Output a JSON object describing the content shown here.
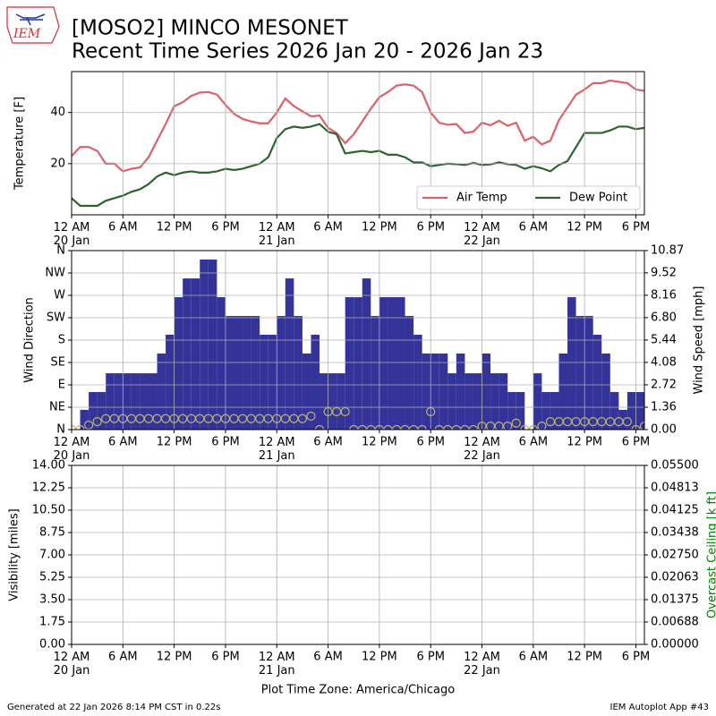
{
  "title_lines": [
    "[MOSO2] MINCO MESONET",
    "Recent Time Series 2026 Jan 20 - 2026 Jan 23"
  ],
  "footer_left": "Generated at 22 Jan 2026 8:14 PM CST in 0.22s",
  "footer_right": "IEM Autoplot App #43",
  "chart_data": [
    {
      "type": "line",
      "ylabel": "Temperature [F]",
      "legend": "lower right",
      "grid": true,
      "x": [
        "2026-01-20 00:00",
        "2026-01-20 01:00",
        "2026-01-20 02:00",
        "2026-01-20 03:00",
        "2026-01-20 04:00",
        "2026-01-20 05:00",
        "2026-01-20 06:00",
        "2026-01-20 07:00",
        "2026-01-20 08:00",
        "2026-01-20 09:00",
        "2026-01-20 10:00",
        "2026-01-20 11:00",
        "2026-01-20 12:00",
        "2026-01-20 13:00",
        "2026-01-20 14:00",
        "2026-01-20 15:00",
        "2026-01-20 16:00",
        "2026-01-20 17:00",
        "2026-01-20 18:00",
        "2026-01-20 19:00",
        "2026-01-20 20:00",
        "2026-01-20 21:00",
        "2026-01-20 22:00",
        "2026-01-20 23:00",
        "2026-01-21 00:00",
        "2026-01-21 01:00",
        "2026-01-21 02:00",
        "2026-01-21 03:00",
        "2026-01-21 04:00",
        "2026-01-21 05:00",
        "2026-01-21 06:00",
        "2026-01-21 07:00",
        "2026-01-21 08:00",
        "2026-01-21 09:00",
        "2026-01-21 10:00",
        "2026-01-21 11:00",
        "2026-01-21 12:00",
        "2026-01-21 13:00",
        "2026-01-21 14:00",
        "2026-01-21 15:00",
        "2026-01-21 16:00",
        "2026-01-21 17:00",
        "2026-01-21 18:00",
        "2026-01-21 19:00",
        "2026-01-21 20:00",
        "2026-01-21 21:00",
        "2026-01-21 22:00",
        "2026-01-21 23:00",
        "2026-01-22 00:00",
        "2026-01-22 01:00",
        "2026-01-22 02:00",
        "2026-01-22 03:00",
        "2026-01-22 04:00",
        "2026-01-22 05:00",
        "2026-01-22 06:00",
        "2026-01-22 07:00",
        "2026-01-22 08:00",
        "2026-01-22 09:00",
        "2026-01-22 10:00",
        "2026-01-22 11:00",
        "2026-01-22 12:00",
        "2026-01-22 13:00",
        "2026-01-22 14:00",
        "2026-01-22 15:00",
        "2026-01-22 16:00",
        "2026-01-22 17:00",
        "2026-01-22 18:00",
        "2026-01-22 19:00"
      ],
      "xlim": [
        "2026-01-20 00:00",
        "2026-01-22 19:00"
      ],
      "xticks": [
        {
          "value": "2026-01-20 00:00",
          "label": "12 AM\n20 Jan"
        },
        {
          "value": "2026-01-20 06:00",
          "label": "6 AM"
        },
        {
          "value": "2026-01-20 12:00",
          "label": "12 PM"
        },
        {
          "value": "2026-01-20 18:00",
          "label": "6 PM"
        },
        {
          "value": "2026-01-21 00:00",
          "label": "12 AM\n21 Jan"
        },
        {
          "value": "2026-01-21 06:00",
          "label": "6 AM"
        },
        {
          "value": "2026-01-21 12:00",
          "label": "12 PM"
        },
        {
          "value": "2026-01-21 18:00",
          "label": "6 PM"
        },
        {
          "value": "2026-01-22 00:00",
          "label": "12 AM\n22 Jan"
        },
        {
          "value": "2026-01-22 06:00",
          "label": "6 AM"
        },
        {
          "value": "2026-01-22 12:00",
          "label": "12 PM"
        },
        {
          "value": "2026-01-22 18:00",
          "label": "6 PM"
        }
      ],
      "ylim": [
        0,
        56
      ],
      "yticks": [
        20,
        40
      ],
      "series": [
        {
          "name": "Air Temp",
          "color": "#d9626b",
          "type": "line",
          "values": [
            23,
            26.5,
            26.5,
            25,
            20,
            20,
            17,
            18,
            18.5,
            22.5,
            29,
            35.5,
            42.5,
            44,
            46.5,
            47.8,
            48,
            47,
            43,
            39.5,
            37.5,
            36.5,
            35.8,
            35.8,
            40,
            45.5,
            42.5,
            40.5,
            38.5,
            38.8,
            34,
            32,
            28,
            31.5,
            36.5,
            41.5,
            46,
            48,
            50.5,
            51,
            50.5,
            48,
            40,
            36,
            35.2,
            35.5,
            32,
            32.5,
            36,
            35,
            36.8,
            34.8,
            36,
            29,
            30.5,
            27.5,
            29,
            37,
            42,
            47,
            49,
            51.5,
            51.5,
            52.5,
            52,
            51.5,
            49,
            48.5
          ]
        },
        {
          "name": "Dew Point",
          "color": "#2e6330",
          "type": "line",
          "values": [
            6.5,
            3.5,
            3.5,
            3.5,
            5.5,
            6.5,
            7.5,
            9,
            10,
            12,
            15,
            16.5,
            15.5,
            16.5,
            17,
            16.5,
            16.5,
            17,
            18,
            17.5,
            18,
            19,
            20,
            22.5,
            30,
            33.5,
            34.5,
            34,
            34.5,
            35.5,
            32.5,
            31.5,
            24,
            24.5,
            25,
            24.5,
            25,
            23.5,
            23.5,
            22.5,
            20.5,
            20.5,
            19,
            19.5,
            20,
            19.8,
            19.5,
            20.3,
            19.5,
            19.7,
            20.5,
            19.8,
            19.5,
            18,
            19,
            18.2,
            17,
            19.5,
            21,
            26.5,
            32,
            32,
            32,
            33,
            34.5,
            34.5,
            33.5,
            34
          ]
        }
      ]
    },
    {
      "type": "combo",
      "ylabel": "Wind Direction",
      "y2label": "Wind Speed [mph]",
      "grid": true,
      "x": [
        "2026-01-20 00:00",
        "2026-01-20 01:00",
        "2026-01-20 02:00",
        "2026-01-20 03:00",
        "2026-01-20 04:00",
        "2026-01-20 05:00",
        "2026-01-20 06:00",
        "2026-01-20 07:00",
        "2026-01-20 08:00",
        "2026-01-20 09:00",
        "2026-01-20 10:00",
        "2026-01-20 11:00",
        "2026-01-20 12:00",
        "2026-01-20 13:00",
        "2026-01-20 14:00",
        "2026-01-20 15:00",
        "2026-01-20 16:00",
        "2026-01-20 17:00",
        "2026-01-20 18:00",
        "2026-01-20 19:00",
        "2026-01-20 20:00",
        "2026-01-20 21:00",
        "2026-01-20 22:00",
        "2026-01-20 23:00",
        "2026-01-21 00:00",
        "2026-01-21 01:00",
        "2026-01-21 02:00",
        "2026-01-21 03:00",
        "2026-01-21 04:00",
        "2026-01-21 05:00",
        "2026-01-21 06:00",
        "2026-01-21 07:00",
        "2026-01-21 08:00",
        "2026-01-21 09:00",
        "2026-01-21 10:00",
        "2026-01-21 11:00",
        "2026-01-21 12:00",
        "2026-01-21 13:00",
        "2026-01-21 14:00",
        "2026-01-21 15:00",
        "2026-01-21 16:00",
        "2026-01-21 17:00",
        "2026-01-21 18:00",
        "2026-01-21 19:00",
        "2026-01-21 20:00",
        "2026-01-21 21:00",
        "2026-01-21 22:00",
        "2026-01-21 23:00",
        "2026-01-22 00:00",
        "2026-01-22 01:00",
        "2026-01-22 02:00",
        "2026-01-22 03:00",
        "2026-01-22 04:00",
        "2026-01-22 05:00",
        "2026-01-22 06:00",
        "2026-01-22 07:00",
        "2026-01-22 08:00",
        "2026-01-22 09:00",
        "2026-01-22 10:00",
        "2026-01-22 11:00",
        "2026-01-22 12:00",
        "2026-01-22 13:00",
        "2026-01-22 14:00",
        "2026-01-22 15:00",
        "2026-01-22 16:00",
        "2026-01-22 17:00",
        "2026-01-22 18:00",
        "2026-01-22 19:00"
      ],
      "xlim": [
        "2026-01-20 00:00",
        "2026-01-22 19:00"
      ],
      "xticks": [
        {
          "value": "2026-01-20 00:00",
          "label": "12 AM\n20 Jan"
        },
        {
          "value": "2026-01-20 06:00",
          "label": "6 AM"
        },
        {
          "value": "2026-01-20 12:00",
          "label": "12 PM"
        },
        {
          "value": "2026-01-20 18:00",
          "label": "6 PM"
        },
        {
          "value": "2026-01-21 00:00",
          "label": "12 AM\n21 Jan"
        },
        {
          "value": "2026-01-21 06:00",
          "label": "6 AM"
        },
        {
          "value": "2026-01-21 12:00",
          "label": "12 PM"
        },
        {
          "value": "2026-01-21 18:00",
          "label": "6 PM"
        },
        {
          "value": "2026-01-22 00:00",
          "label": "12 AM\n22 Jan"
        },
        {
          "value": "2026-01-22 06:00",
          "label": "6 AM"
        },
        {
          "value": "2026-01-22 12:00",
          "label": "12 PM"
        },
        {
          "value": "2026-01-22 18:00",
          "label": "6 PM"
        }
      ],
      "ylim": [
        0,
        360
      ],
      "yticks": [
        {
          "value": 0,
          "label": "N"
        },
        {
          "value": 45,
          "label": "NE"
        },
        {
          "value": 90,
          "label": "E"
        },
        {
          "value": 135,
          "label": "SE"
        },
        {
          "value": 180,
          "label": "S"
        },
        {
          "value": 225,
          "label": "SW"
        },
        {
          "value": 270,
          "label": "W"
        },
        {
          "value": 315,
          "label": "NW"
        },
        {
          "value": 360,
          "label": "N"
        }
      ],
      "y2lim": [
        0,
        10.87
      ],
      "y2ticks": [
        {
          "value": 0,
          "label": "0.00"
        },
        1.36,
        2.72,
        4.08,
        5.44,
        {
          "value": 6.8,
          "label": "6.80"
        },
        8.16,
        9.52,
        10.87
      ],
      "series": [
        {
          "type": "bar",
          "axis": "y2",
          "color": "#333399",
          "values": [
            0,
            1.2,
            2.28,
            2.28,
            3.42,
            3.42,
            3.42,
            3.42,
            3.42,
            3.42,
            4.62,
            5.76,
            8.04,
            9.18,
            9.18,
            10.33,
            10.33,
            8.04,
            6.9,
            6.9,
            6.9,
            6.9,
            5.76,
            5.76,
            6.9,
            9.18,
            6.9,
            4.62,
            5.76,
            3.42,
            3.42,
            3.42,
            8.04,
            8.04,
            9.18,
            6.9,
            8.04,
            8.04,
            8.04,
            6.9,
            5.76,
            4.62,
            4.62,
            4.62,
            3.42,
            4.62,
            3.42,
            3.42,
            4.62,
            3.42,
            3.42,
            2.28,
            2.28,
            0,
            3.42,
            2.28,
            2.28,
            4.62,
            8.04,
            6.9,
            6.9,
            5.76,
            4.62,
            2.28,
            1.2,
            2.28,
            2.28,
            2.28
          ]
        },
        {
          "type": "scatter",
          "color": "#bdb76b",
          "values": [
            0,
            0,
            9,
            16,
            22,
            22,
            22,
            22,
            22,
            22,
            22,
            22,
            22,
            22,
            22,
            22,
            22,
            22,
            22,
            22,
            22,
            22,
            22,
            22,
            22,
            22,
            22,
            22,
            27,
            0,
            36,
            36,
            36,
            0,
            0,
            0,
            0,
            0,
            0,
            0,
            0,
            0,
            36,
            0,
            0,
            0,
            0,
            0,
            7,
            7,
            7,
            7,
            13,
            0,
            0,
            7,
            16,
            16,
            16,
            16,
            16,
            16,
            16,
            16,
            16,
            16,
            0,
            7
          ]
        }
      ]
    },
    {
      "type": "line",
      "ylabel": "Visibility [miles]",
      "y2label": "Overcast Ceiling [k ft]",
      "y2label_color": "green",
      "grid": true,
      "xlabel": "Plot Time Zone: America/Chicago",
      "xlim": [
        "2026-01-20 00:00",
        "2026-01-22 19:00"
      ],
      "xticks": [
        {
          "value": "2026-01-20 00:00",
          "label": "12 AM\n20 Jan"
        },
        {
          "value": "2026-01-20 06:00",
          "label": "6 AM"
        },
        {
          "value": "2026-01-20 12:00",
          "label": "12 PM"
        },
        {
          "value": "2026-01-20 18:00",
          "label": "6 PM"
        },
        {
          "value": "2026-01-21 00:00",
          "label": "12 AM\n21 Jan"
        },
        {
          "value": "2026-01-21 06:00",
          "label": "6 AM"
        },
        {
          "value": "2026-01-21 12:00",
          "label": "12 PM"
        },
        {
          "value": "2026-01-21 18:00",
          "label": "6 PM"
        },
        {
          "value": "2026-01-22 00:00",
          "label": "12 AM\n22 Jan"
        },
        {
          "value": "2026-01-22 06:00",
          "label": "6 AM"
        },
        {
          "value": "2026-01-22 12:00",
          "label": "12 PM"
        },
        {
          "value": "2026-01-22 18:00",
          "label": "6 PM"
        }
      ],
      "ylim": [
        0,
        14
      ],
      "yticks": [
        {
          "value": 0,
          "label": "0.00"
        },
        1.75,
        {
          "value": 3.5,
          "label": "3.50"
        },
        5.25,
        {
          "value": 7,
          "label": "7.00"
        },
        8.75,
        {
          "value": 10.5,
          "label": "10.50"
        },
        12.25,
        {
          "value": 14,
          "label": "14.00"
        }
      ],
      "y2lim": [
        0,
        0.055
      ],
      "y2ticks": [
        {
          "value": 0,
          "label": "0.00000"
        },
        0.00688,
        0.01375,
        0.02063,
        {
          "value": 0.0275,
          "label": "0.02750"
        },
        0.03438,
        0.04125,
        0.04813,
        {
          "value": 0.055,
          "label": "0.05500"
        }
      ],
      "series": []
    }
  ]
}
